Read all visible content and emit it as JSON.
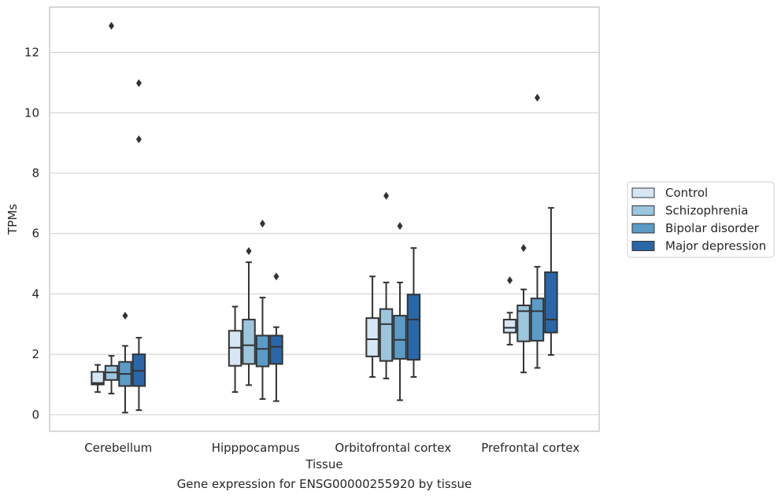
{
  "chart_data": {
    "type": "box",
    "caption": "Gene expression for ENSG00000255920 by tissue",
    "xlabel": "Tissue",
    "ylabel": "TPMs",
    "ylim": [
      -0.55,
      13.5
    ],
    "yticks": [
      0,
      2,
      4,
      6,
      8,
      10,
      12
    ],
    "categories": [
      "Cerebellum",
      "Hipppocampus",
      "Orbitofrontal cortex",
      "Prefrontal cortex"
    ],
    "grid": "horizontal",
    "legend_position": "right",
    "series": [
      {
        "name": "Control",
        "color": "#d6e6f4",
        "boxes": [
          {
            "whislo": 0.75,
            "q1": 1.0,
            "med": 1.05,
            "q3": 1.42,
            "whishi": 1.65,
            "fliers": []
          },
          {
            "whislo": 0.75,
            "q1": 1.62,
            "med": 2.22,
            "q3": 2.78,
            "whishi": 3.58,
            "fliers": []
          },
          {
            "whislo": 1.25,
            "q1": 1.93,
            "med": 2.5,
            "q3": 3.2,
            "whishi": 4.58,
            "fliers": []
          },
          {
            "whislo": 2.32,
            "q1": 2.72,
            "med": 2.88,
            "q3": 3.15,
            "whishi": 3.38,
            "fliers": [
              4.45
            ]
          }
        ]
      },
      {
        "name": "Schizophrenia",
        "color": "#9cc6dd",
        "boxes": [
          {
            "whislo": 0.7,
            "q1": 1.15,
            "med": 1.4,
            "q3": 1.62,
            "whishi": 1.95,
            "fliers": [
              12.88
            ]
          },
          {
            "whislo": 0.98,
            "q1": 1.68,
            "med": 2.3,
            "q3": 3.15,
            "whishi": 5.05,
            "fliers": [
              5.42
            ]
          },
          {
            "whislo": 1.2,
            "q1": 1.78,
            "med": 3.0,
            "q3": 3.5,
            "whishi": 4.38,
            "fliers": [
              7.25
            ]
          },
          {
            "whislo": 1.4,
            "q1": 2.43,
            "med": 3.43,
            "q3": 3.62,
            "whishi": 4.15,
            "fliers": [
              5.52
            ]
          }
        ]
      },
      {
        "name": "Bipolar disorder",
        "color": "#5b9bc8",
        "boxes": [
          {
            "whislo": 0.07,
            "q1": 0.95,
            "med": 1.35,
            "q3": 1.75,
            "whishi": 2.28,
            "fliers": [
              3.28
            ]
          },
          {
            "whislo": 0.52,
            "q1": 1.6,
            "med": 2.18,
            "q3": 2.62,
            "whishi": 3.88,
            "fliers": [
              6.33
            ]
          },
          {
            "whislo": 0.48,
            "q1": 1.85,
            "med": 2.48,
            "q3": 3.28,
            "whishi": 4.38,
            "fliers": [
              6.25
            ]
          },
          {
            "whislo": 1.55,
            "q1": 2.45,
            "med": 3.43,
            "q3": 3.85,
            "whishi": 4.9,
            "fliers": [
              10.5
            ]
          }
        ]
      },
      {
        "name": "Major depression",
        "color": "#2a67a9",
        "boxes": [
          {
            "whislo": 0.15,
            "q1": 0.95,
            "med": 1.45,
            "q3": 2.0,
            "whishi": 2.55,
            "fliers": [
              10.98,
              9.12
            ]
          },
          {
            "whislo": 0.45,
            "q1": 1.68,
            "med": 2.25,
            "q3": 2.62,
            "whishi": 2.9,
            "fliers": [
              4.58
            ]
          },
          {
            "whislo": 1.25,
            "q1": 1.82,
            "med": 3.15,
            "q3": 3.98,
            "whishi": 5.52,
            "fliers": []
          },
          {
            "whislo": 1.98,
            "q1": 2.72,
            "med": 3.15,
            "q3": 4.72,
            "whishi": 6.85,
            "fliers": []
          }
        ]
      }
    ]
  }
}
